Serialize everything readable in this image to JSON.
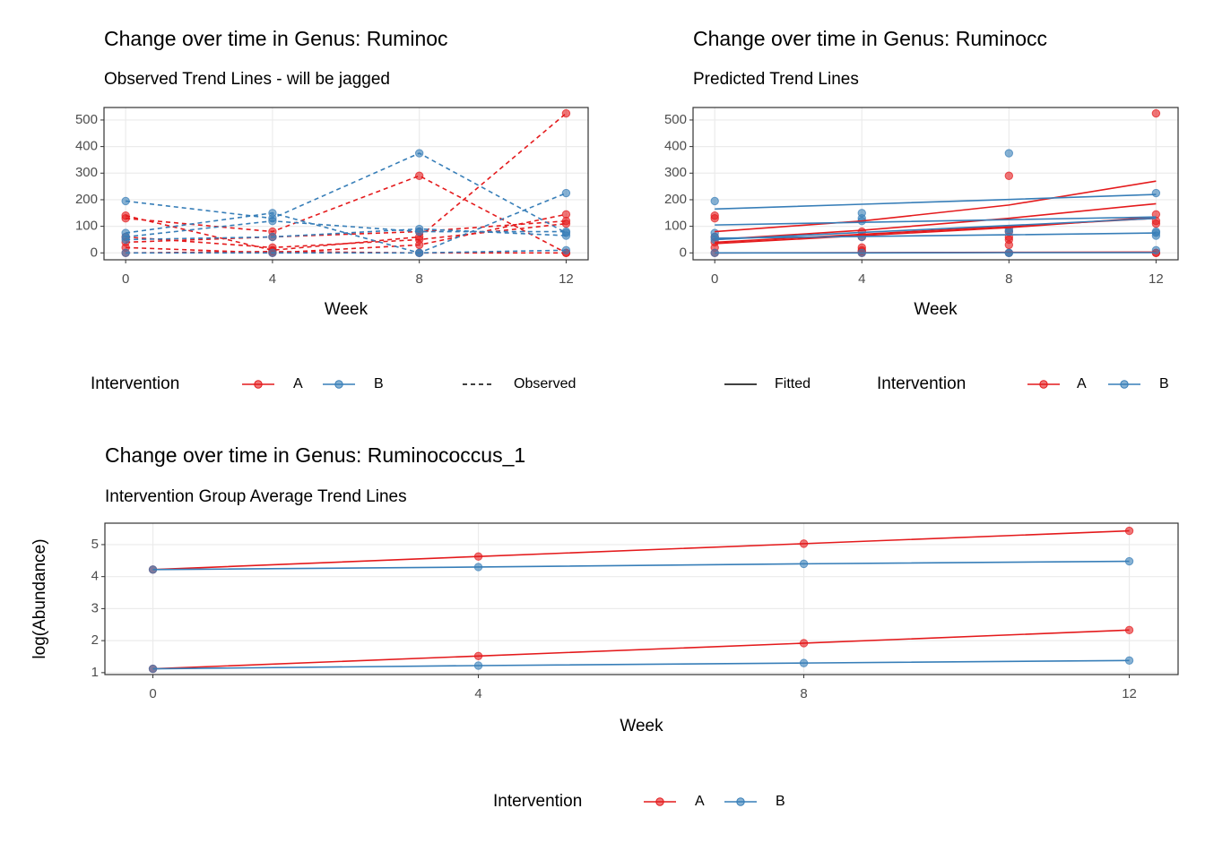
{
  "chart_data": [
    {
      "type": "line",
      "title": "Change over time in Genus: Ruminoc",
      "subtitle": "Observed Trend Lines - will be jagged",
      "x_label": "Week",
      "x": [
        0,
        4,
        8,
        12
      ],
      "xlim": [
        -0.59,
        12.6
      ],
      "xticks": [
        0,
        4,
        8,
        12
      ],
      "ylim": [
        -26,
        547
      ],
      "yticks": [
        0,
        100,
        200,
        300,
        400,
        500
      ],
      "grid": true,
      "legend": {
        "title": "Intervention",
        "items": [
          {
            "label": "A",
            "color": "#e41a1c"
          },
          {
            "label": "B",
            "color": "#377eb8"
          }
        ]
      },
      "linetype_legend": {
        "label": "Observed",
        "dashed": true
      },
      "series": [
        {
          "color": "#e41a1c",
          "mode": "lines+points",
          "dashed": true,
          "values": [
            130,
            80,
            290,
            0
          ]
        },
        {
          "color": "#e41a1c",
          "mode": "lines+points",
          "dashed": true,
          "values": [
            140,
            10,
            60,
            525
          ]
        },
        {
          "color": "#e41a1c",
          "mode": "lines+points",
          "dashed": true,
          "values": [
            40,
            60,
            80,
            120
          ]
        },
        {
          "color": "#e41a1c",
          "mode": "lines+points",
          "dashed": true,
          "values": [
            20,
            0,
            30,
            145
          ]
        },
        {
          "color": "#e41a1c",
          "mode": "lines+points",
          "dashed": true,
          "values": [
            0,
            5,
            0,
            0
          ]
        },
        {
          "color": "#e41a1c",
          "mode": "lines+points",
          "dashed": true,
          "values": [
            60,
            20,
            50,
            110
          ]
        },
        {
          "color": "#377eb8",
          "mode": "lines+points",
          "dashed": true,
          "values": [
            195,
            130,
            375,
            75
          ]
        },
        {
          "color": "#377eb8",
          "mode": "lines+points",
          "dashed": true,
          "values": [
            75,
            150,
            0,
            225
          ]
        },
        {
          "color": "#377eb8",
          "mode": "lines+points",
          "dashed": true,
          "values": [
            50,
            60,
            90,
            65
          ]
        },
        {
          "color": "#377eb8",
          "mode": "lines+points",
          "dashed": true,
          "values": [
            0,
            0,
            0,
            10
          ]
        },
        {
          "color": "#377eb8",
          "mode": "lines+points",
          "dashed": true,
          "values": [
            60,
            120,
            80,
            80
          ]
        }
      ]
    },
    {
      "type": "line",
      "title": "Change over time in Genus: Ruminocc",
      "subtitle": "Predicted Trend Lines",
      "x_label": "Week",
      "x": [
        0,
        4,
        8,
        12
      ],
      "xlim": [
        -0.59,
        12.6
      ],
      "xticks": [
        0,
        4,
        8,
        12
      ],
      "ylim": [
        -26,
        547
      ],
      "yticks": [
        0,
        100,
        200,
        300,
        400,
        500
      ],
      "grid": true,
      "legend": {
        "title": "Intervention",
        "items": [
          {
            "label": "A",
            "color": "#e41a1c"
          },
          {
            "label": "B",
            "color": "#377eb8"
          }
        ]
      },
      "linetype_legend": {
        "label": "Fitted",
        "dashed": false
      },
      "series": [
        {
          "color": "#e41a1c",
          "mode": "points",
          "values": [
            130,
            80,
            290,
            0
          ]
        },
        {
          "color": "#e41a1c",
          "mode": "points",
          "values": [
            140,
            10,
            60,
            525
          ]
        },
        {
          "color": "#e41a1c",
          "mode": "points",
          "values": [
            40,
            60,
            80,
            120
          ]
        },
        {
          "color": "#e41a1c",
          "mode": "points",
          "values": [
            20,
            0,
            30,
            145
          ]
        },
        {
          "color": "#e41a1c",
          "mode": "points",
          "values": [
            0,
            5,
            0,
            0
          ]
        },
        {
          "color": "#e41a1c",
          "mode": "points",
          "values": [
            60,
            20,
            50,
            110
          ]
        },
        {
          "color": "#377eb8",
          "mode": "points",
          "values": [
            195,
            130,
            375,
            75
          ]
        },
        {
          "color": "#377eb8",
          "mode": "points",
          "values": [
            75,
            150,
            0,
            225
          ]
        },
        {
          "color": "#377eb8",
          "mode": "points",
          "values": [
            50,
            60,
            90,
            65
          ]
        },
        {
          "color": "#377eb8",
          "mode": "points",
          "values": [
            0,
            0,
            0,
            10
          ]
        },
        {
          "color": "#377eb8",
          "mode": "points",
          "values": [
            60,
            120,
            80,
            80
          ]
        },
        {
          "color": "#e41a1c",
          "mode": "lines",
          "values": [
            80,
            120,
            180,
            270
          ]
        },
        {
          "color": "#e41a1c",
          "mode": "lines",
          "values": [
            50,
            85,
            130,
            185
          ]
        },
        {
          "color": "#e41a1c",
          "mode": "lines",
          "values": [
            40,
            70,
            100,
            130
          ]
        },
        {
          "color": "#e41a1c",
          "mode": "lines",
          "values": [
            35,
            65,
            95,
            135
          ]
        },
        {
          "color": "#e41a1c",
          "mode": "lines",
          "values": [
            0,
            1,
            2,
            3
          ]
        },
        {
          "color": "#377eb8",
          "mode": "lines",
          "values": [
            165,
            183,
            201,
            220
          ]
        },
        {
          "color": "#377eb8",
          "mode": "lines",
          "values": [
            105,
            115,
            125,
            135
          ]
        },
        {
          "color": "#377eb8",
          "mode": "lines",
          "values": [
            55,
            62,
            68,
            75
          ]
        },
        {
          "color": "#377eb8",
          "mode": "lines",
          "values": [
            50,
            77,
            103,
            130
          ]
        },
        {
          "color": "#377eb8",
          "mode": "lines",
          "values": [
            0,
            0,
            1,
            1
          ]
        }
      ]
    },
    {
      "type": "line",
      "title": "Change over time in Genus: Ruminococcus_1",
      "subtitle": "Intervention Group Average Trend Lines",
      "x_label": "Week",
      "y_label": "log(Abundance)",
      "x": [
        0,
        4,
        8,
        12
      ],
      "xlim": [
        -0.59,
        12.6
      ],
      "xticks": [
        0,
        4,
        8,
        12
      ],
      "ylim": [
        0.94,
        5.67
      ],
      "yticks": [
        1,
        2,
        3,
        4,
        5
      ],
      "grid": true,
      "legend": {
        "title": "Intervention",
        "items": [
          {
            "label": "A",
            "color": "#e41a1c"
          },
          {
            "label": "B",
            "color": "#377eb8"
          }
        ]
      },
      "series": [
        {
          "color": "#e41a1c",
          "mode": "lines+points",
          "values": [
            4.22,
            4.63,
            5.03,
            5.43
          ]
        },
        {
          "color": "#377eb8",
          "mode": "lines+points",
          "values": [
            4.22,
            4.3,
            4.4,
            4.48
          ]
        },
        {
          "color": "#e41a1c",
          "mode": "lines+points",
          "values": [
            1.12,
            1.52,
            1.92,
            2.33
          ]
        },
        {
          "color": "#377eb8",
          "mode": "lines+points",
          "values": [
            1.12,
            1.22,
            1.3,
            1.38
          ]
        }
      ]
    }
  ]
}
